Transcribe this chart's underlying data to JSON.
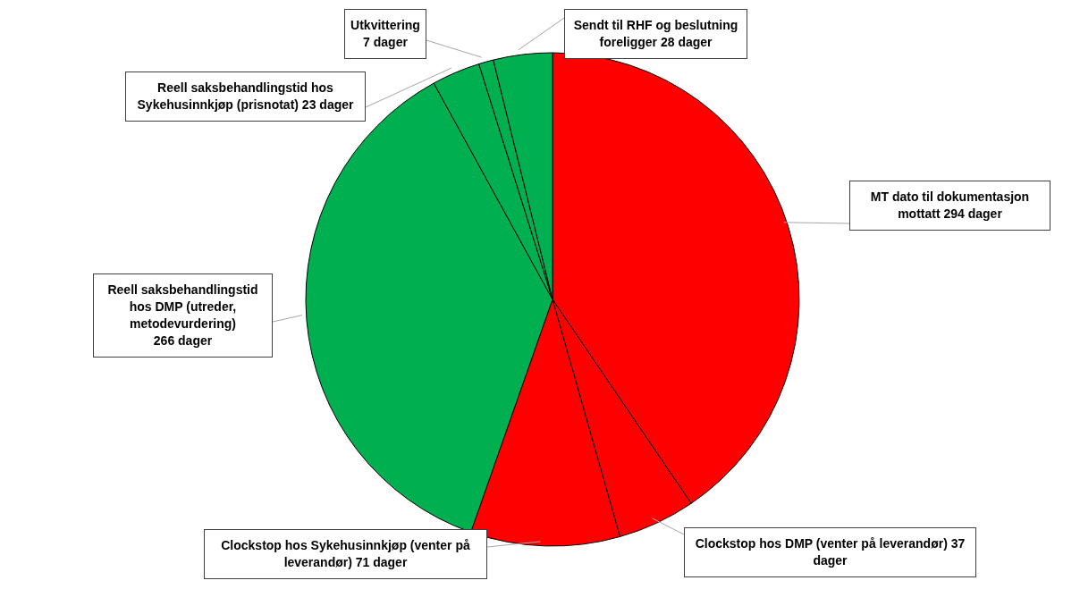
{
  "chart_data": {
    "type": "pie",
    "categories": [
      "MT dato til dokumentasjon mottatt",
      "Clockstop hos DMP (venter på leverandør)",
      "Clockstop hos Sykehusinnkjøp (venter på leverandør)",
      "Reell saksbehandlingstid hos DMP (utreder, metodevurdering)",
      "Reell saksbehandlingstid hos Sykehusinnkjøp (prisnotat)",
      "Utkvittering",
      "Sendt til RHF og beslutning foreligger"
    ],
    "values": [
      294,
      37,
      71,
      266,
      23,
      7,
      28
    ],
    "value_labels": [
      "294 dager",
      "37 dager",
      "71 dager",
      "266 dager",
      "23 dager",
      "7 dager",
      "28 dager"
    ],
    "colors": [
      "#ff0000",
      "#ff0000",
      "#ff0000",
      "#00b050",
      "#00b050",
      "#00b050",
      "#00b050"
    ],
    "legend": false
  }
}
